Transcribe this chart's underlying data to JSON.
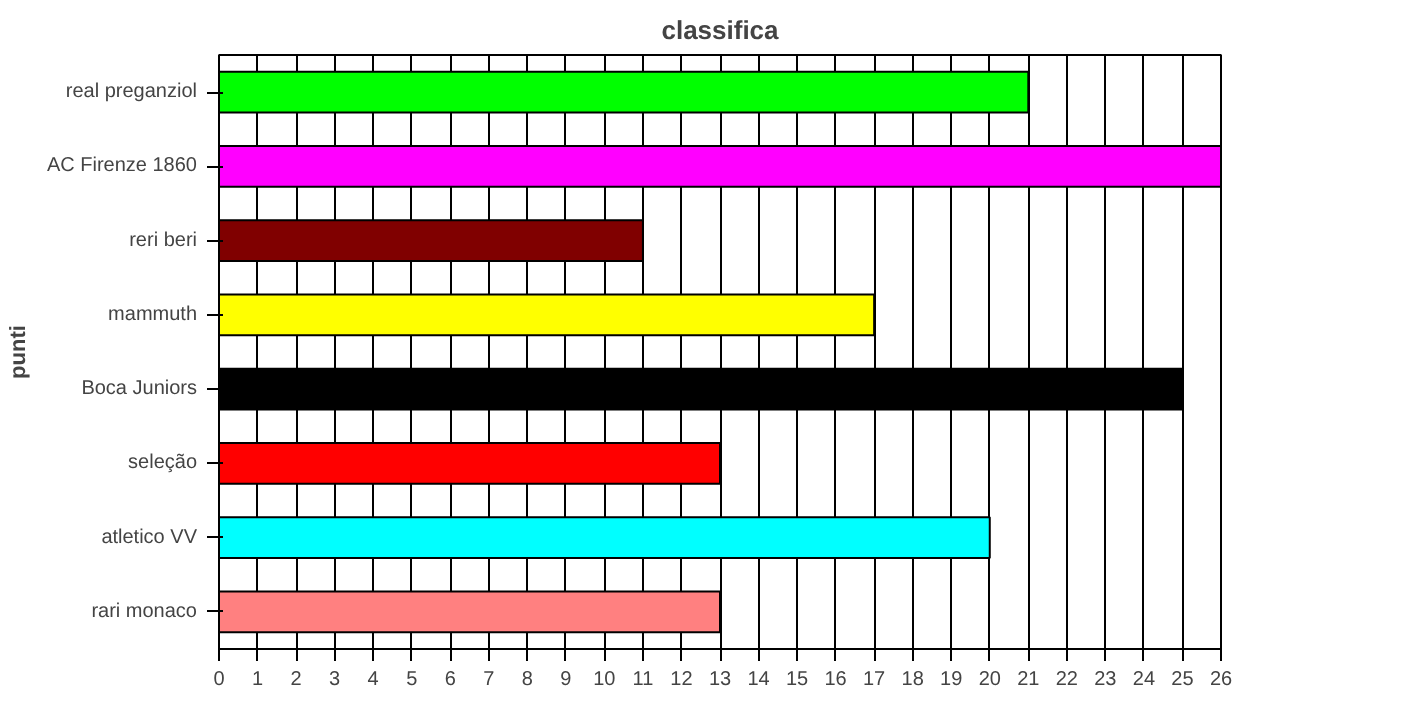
{
  "chart_data": {
    "type": "bar",
    "orientation": "horizontal",
    "title": "classifica",
    "ylabel": "punti",
    "categories": [
      "real preganziol",
      "AC Firenze 1860",
      "reri beri",
      "mammuth",
      "Boca Juniors",
      "seleção",
      "atletico VV",
      "rari monaco"
    ],
    "values": [
      21,
      26,
      11,
      17,
      25,
      13,
      20,
      13
    ],
    "colors": [
      "#00ff00",
      "#ff00ff",
      "#800000",
      "#ffff00",
      "#000000",
      "#ff0000",
      "#00ffff",
      "#ff8080"
    ],
    "xlim": [
      0,
      26
    ],
    "xticks": [
      0,
      1,
      2,
      3,
      4,
      5,
      6,
      7,
      8,
      9,
      10,
      11,
      12,
      13,
      14,
      15,
      16,
      17,
      18,
      19,
      20,
      21,
      22,
      23,
      24,
      25,
      26
    ],
    "grid": "x"
  }
}
